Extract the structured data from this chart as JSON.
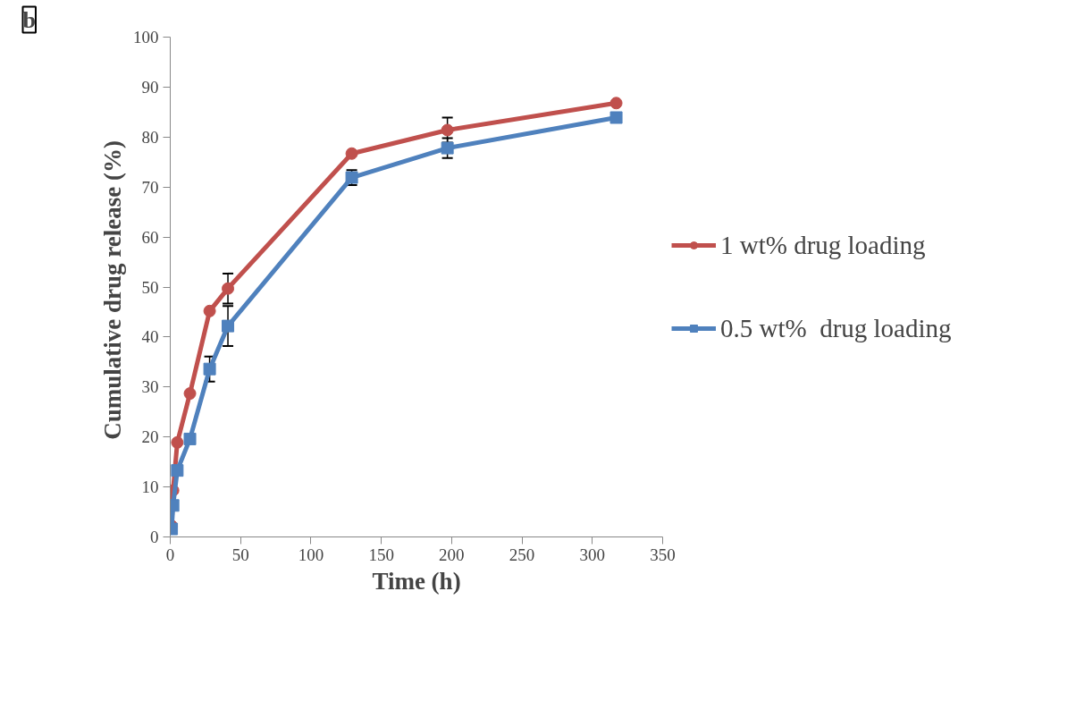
{
  "chart_data": {
    "type": "line",
    "xlabel": "Time (h)",
    "ylabel": "Cumulative drug release  (%)",
    "annotations": [
      "b"
    ],
    "x": [
      1,
      2,
      5,
      14,
      28,
      41,
      129,
      197,
      317
    ],
    "series": [
      {
        "name": "1 wt% drug loading",
        "color": "#c0504d",
        "marker": "circle",
        "values": [
          2.2,
          9.3,
          18.9,
          28.7,
          45.2,
          49.7,
          76.7,
          81.4,
          86.8
        ],
        "errors": [
          null,
          null,
          null,
          null,
          null,
          3,
          null,
          2.5,
          null
        ]
      },
      {
        "name": "0.5 wt%  drug loading",
        "color": "#4f81bd",
        "marker": "square",
        "values": [
          1.6,
          6.3,
          13.3,
          19.6,
          33.6,
          42.2,
          71.9,
          77.8,
          83.9
        ],
        "errors": [
          null,
          null,
          null,
          null,
          2.5,
          4,
          1.5,
          2,
          null
        ]
      }
    ],
    "xlim": [
      0,
      350
    ],
    "xticks": [
      0,
      50,
      100,
      150,
      200,
      250,
      300,
      350
    ],
    "ylim": [
      0,
      100
    ],
    "yticks": [
      0,
      10,
      20,
      30,
      40,
      50,
      60,
      70,
      80,
      90,
      100
    ],
    "grid": false,
    "legend": "right",
    "line_style": "solid"
  }
}
